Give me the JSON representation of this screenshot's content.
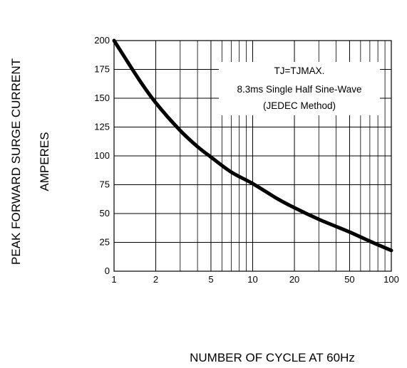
{
  "chart_data": {
    "type": "line",
    "xscale": "log",
    "xlim": [
      1,
      100
    ],
    "ylim": [
      0,
      200
    ],
    "x_ticks": [
      1,
      2,
      5,
      10,
      20,
      50,
      100
    ],
    "x_tick_labels": [
      "1",
      "2",
      "5",
      "10",
      "20",
      "50",
      "100"
    ],
    "y_ticks": [
      0,
      25,
      50,
      75,
      100,
      125,
      150,
      175,
      200
    ],
    "y_tick_labels": [
      "0",
      "25",
      "50",
      "75",
      "100",
      "125",
      "150",
      "175",
      "200"
    ],
    "ylabel_line1": "PEAK FORWARD SURGE CURRENT",
    "ylabel_line2": "AMPERES",
    "xlabel": "NUMBER OF CYCLE AT 60Hz",
    "grid": true,
    "annotation": {
      "line1": "TJ=TJMAX.",
      "line2": "8.3ms Single Half Sine-Wave",
      "line3": "(JEDEC Method)"
    },
    "series": [
      {
        "x": [
          1,
          1.5,
          2,
          3,
          4,
          5,
          7,
          10,
          15,
          20,
          30,
          50,
          70,
          100
        ],
        "y": [
          200,
          167,
          146,
          122,
          108,
          99,
          86,
          76,
          63,
          55,
          45,
          34,
          26,
          18
        ]
      }
    ]
  }
}
